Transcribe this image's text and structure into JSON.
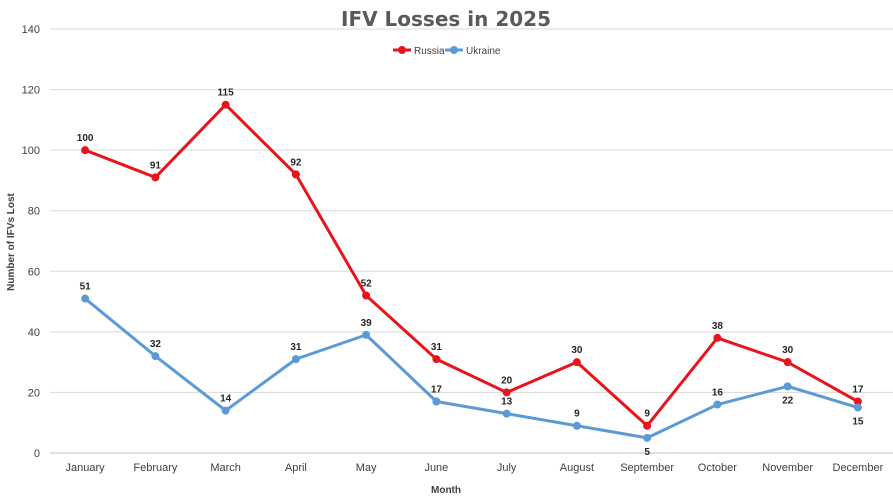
{
  "chart_data": {
    "type": "line",
    "title": "IFV Losses in 2025",
    "xlabel": "Month",
    "ylabel": "Number of IFVs Lost",
    "ylim": [
      0,
      140
    ],
    "yticks": [
      0,
      20,
      40,
      60,
      80,
      100,
      120,
      140
    ],
    "grid": true,
    "legend_position": "top-center",
    "categories": [
      "January",
      "February",
      "March",
      "April",
      "May",
      "June",
      "July",
      "August",
      "September",
      "October",
      "November",
      "December"
    ],
    "series": [
      {
        "name": "Russia",
        "color": "#e8141b",
        "values": [
          100,
          91,
          115,
          92,
          52,
          31,
          20,
          30,
          9,
          38,
          30,
          17
        ],
        "label_pos": [
          "above",
          "above",
          "above",
          "above",
          "above",
          "above",
          "above",
          "above",
          "above",
          "above",
          "above",
          "above"
        ]
      },
      {
        "name": "Ukraine",
        "color": "#5b9bd5",
        "values": [
          51,
          32,
          14,
          31,
          39,
          17,
          13,
          9,
          5,
          16,
          22,
          15
        ],
        "label_pos": [
          "above",
          "above",
          "above",
          "above",
          "above",
          "above",
          "above",
          "above",
          "below",
          "above",
          "below",
          "below"
        ]
      }
    ]
  }
}
